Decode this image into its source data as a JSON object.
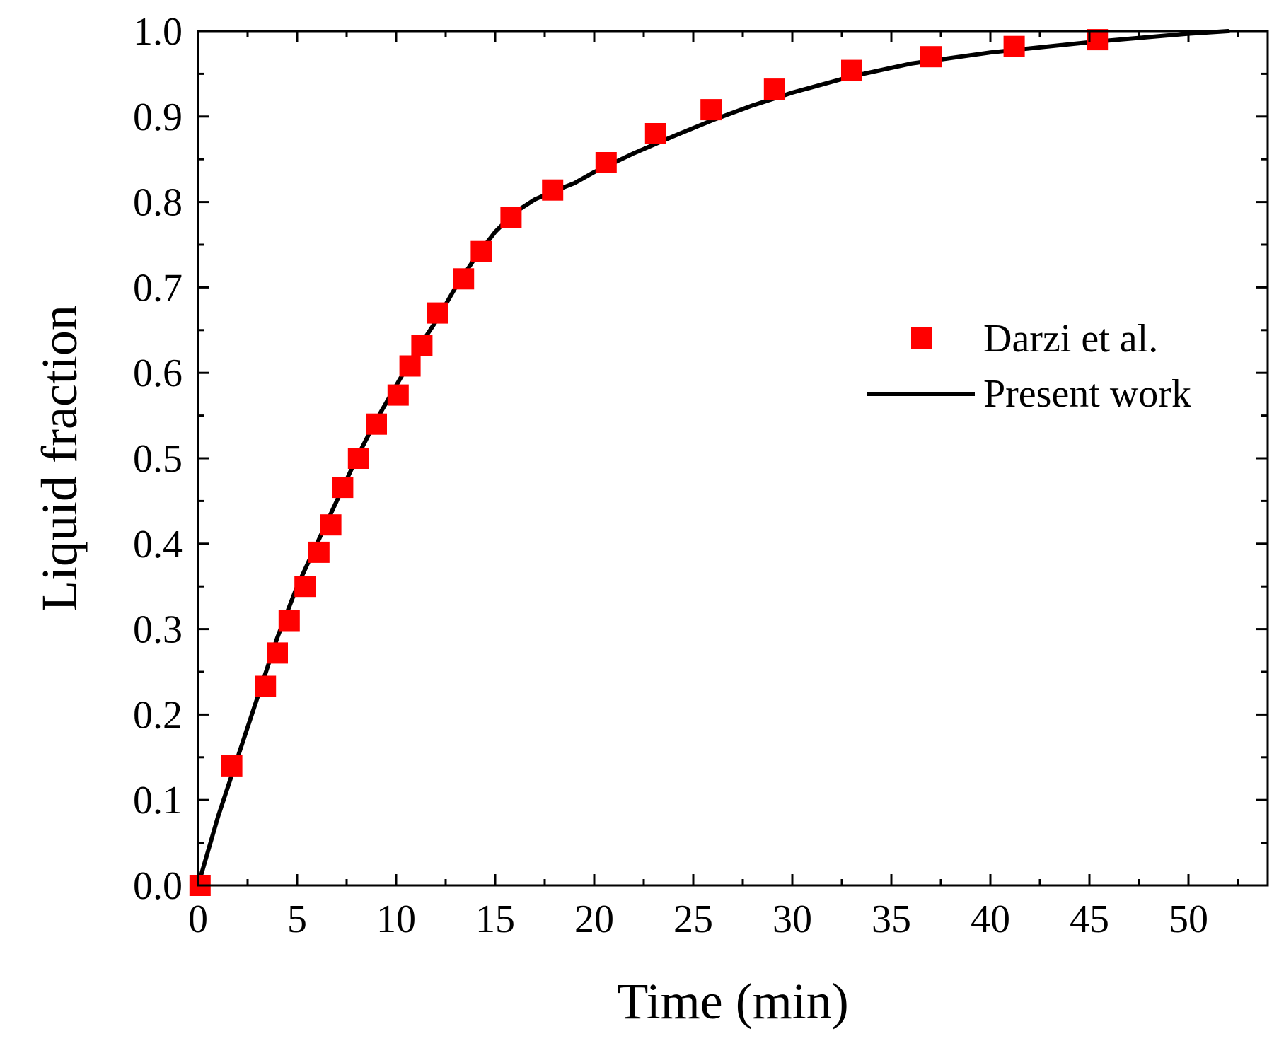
{
  "chart_data": {
    "type": "scatter",
    "title": "",
    "xlabel": "Time (min)",
    "ylabel": "Liquid fraction",
    "xlim": [
      0,
      54
    ],
    "ylim": [
      0,
      1.0
    ],
    "xticks": [
      0,
      5,
      10,
      15,
      20,
      25,
      30,
      35,
      40,
      45,
      50
    ],
    "yticks": [
      0.0,
      0.1,
      0.2,
      0.3,
      0.4,
      0.5,
      0.6,
      0.7,
      0.8,
      0.9,
      1.0
    ],
    "grid": false,
    "legend_position": "right",
    "series": [
      {
        "name": "Darzi et al.",
        "kind": "markers",
        "marker": "square",
        "color": "#ff0000",
        "x": [
          0.1,
          1.7,
          3.4,
          4.0,
          4.6,
          5.4,
          6.1,
          6.7,
          7.3,
          8.1,
          9.0,
          10.1,
          10.7,
          11.3,
          12.1,
          13.4,
          14.3,
          15.8,
          17.9,
          20.6,
          23.1,
          25.9,
          29.1,
          33.0,
          37.0,
          41.2,
          45.4
        ],
        "y": [
          0.0,
          0.14,
          0.233,
          0.272,
          0.31,
          0.35,
          0.39,
          0.422,
          0.466,
          0.5,
          0.54,
          0.574,
          0.608,
          0.632,
          0.67,
          0.71,
          0.742,
          0.782,
          0.814,
          0.846,
          0.88,
          0.908,
          0.932,
          0.954,
          0.97,
          0.982,
          0.99
        ]
      },
      {
        "name": "Present work",
        "kind": "line",
        "color": "#000000",
        "x": [
          0,
          1,
          2,
          3,
          4,
          5,
          6,
          7,
          8,
          9,
          10,
          11,
          12,
          13,
          14,
          15,
          16,
          17,
          18,
          19,
          20,
          22,
          24,
          26,
          28,
          30,
          33,
          36,
          40,
          45,
          50,
          52
        ],
        "y": [
          0.0,
          0.08,
          0.15,
          0.22,
          0.29,
          0.35,
          0.4,
          0.45,
          0.5,
          0.545,
          0.585,
          0.625,
          0.66,
          0.7,
          0.735,
          0.765,
          0.788,
          0.803,
          0.813,
          0.822,
          0.835,
          0.857,
          0.877,
          0.896,
          0.913,
          0.928,
          0.947,
          0.962,
          0.975,
          0.987,
          0.997,
          1.0
        ]
      }
    ]
  }
}
